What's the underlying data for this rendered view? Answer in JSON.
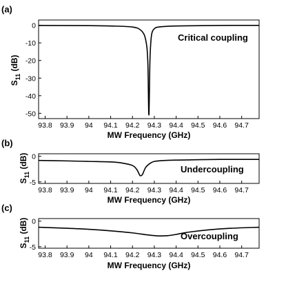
{
  "chart_data": [
    {
      "type": "line",
      "panel_label": "(a)",
      "annotation": "Critical coupling",
      "xlabel": "MW Frequency (GHz)",
      "ylabel_main": "S",
      "ylabel_sub": "11",
      "ylabel_unit": " (dB)",
      "xlim": [
        93.77,
        94.78
      ],
      "ylim": [
        -53,
        3
      ],
      "x_ticks": [
        "93.8",
        "93.9",
        "94",
        "94.1",
        "94.2",
        "94.3",
        "94.4",
        "94.5",
        "94.6",
        "94.7"
      ],
      "x_tick_values": [
        93.8,
        93.9,
        94.0,
        94.1,
        94.2,
        94.3,
        94.4,
        94.5,
        94.6,
        94.7
      ],
      "y_ticks": [
        "0",
        "-10",
        "-20",
        "-30",
        "-40",
        "-50"
      ],
      "y_tick_values": [
        0,
        -10,
        -20,
        -30,
        -40,
        -50
      ],
      "grid": false,
      "series": [
        {
          "x": [
            93.77,
            94.0,
            94.1,
            94.2,
            94.24,
            94.26,
            94.27,
            94.275,
            94.28,
            94.285,
            94.29,
            94.3,
            94.32,
            94.4,
            94.6,
            94.78
          ],
          "y": [
            -0.1,
            -0.2,
            -0.4,
            -1.0,
            -3.0,
            -8.0,
            -20.0,
            -51.0,
            -20.0,
            -8.0,
            -4.0,
            -2.0,
            -1.0,
            -0.4,
            -0.1,
            -0.05
          ]
        }
      ]
    },
    {
      "type": "line",
      "panel_label": "(b)",
      "annotation": "Undercoupling",
      "xlabel": "MW Frequency (GHz)",
      "ylabel_main": "S",
      "ylabel_sub": "11",
      "ylabel_unit": " (dB)",
      "xlim": [
        93.77,
        94.78
      ],
      "ylim": [
        -5.3,
        0.5
      ],
      "x_ticks": [
        "93.8",
        "93.9",
        "94",
        "94.1",
        "94.2",
        "94.3",
        "94.4",
        "94.5",
        "94.6",
        "94.7"
      ],
      "x_tick_values": [
        93.8,
        93.9,
        94.0,
        94.1,
        94.2,
        94.3,
        94.4,
        94.5,
        94.6,
        94.7
      ],
      "y_ticks": [
        "0",
        "-5"
      ],
      "y_tick_values": [
        0,
        -5
      ],
      "grid": false,
      "series": [
        {
          "x": [
            93.77,
            93.9,
            94.0,
            94.1,
            94.15,
            94.2,
            94.22,
            94.235,
            94.245,
            94.26,
            94.28,
            94.3,
            94.35,
            94.45,
            94.6,
            94.78
          ],
          "y": [
            -0.8,
            -0.9,
            -1.0,
            -1.1,
            -1.3,
            -1.8,
            -2.6,
            -3.8,
            -3.6,
            -2.2,
            -1.4,
            -1.0,
            -0.8,
            -0.7,
            -0.6,
            -0.6
          ]
        }
      ]
    },
    {
      "type": "line",
      "panel_label": "(c)",
      "annotation": "Overcoupling",
      "xlabel": "MW Frequency (GHz)",
      "ylabel_main": "S",
      "ylabel_sub": "11",
      "ylabel_unit": " (dB)",
      "xlim": [
        93.77,
        94.78
      ],
      "ylim": [
        -5.3,
        0.5
      ],
      "x_ticks": [
        "93.8",
        "93.9",
        "94",
        "94.1",
        "94.2",
        "94.3",
        "94.4",
        "94.5",
        "94.6",
        "94.7"
      ],
      "x_tick_values": [
        93.8,
        93.9,
        94.0,
        94.1,
        94.2,
        94.3,
        94.4,
        94.5,
        94.6,
        94.7
      ],
      "y_ticks": [
        "0",
        "-5"
      ],
      "y_tick_values": [
        0,
        -5
      ],
      "grid": false,
      "series": [
        {
          "x": [
            93.77,
            93.9,
            94.0,
            94.1,
            94.2,
            94.27,
            94.32,
            94.36,
            94.4,
            94.45,
            94.55,
            94.65,
            94.78
          ],
          "y": [
            -1.2,
            -1.4,
            -1.6,
            -1.9,
            -2.3,
            -2.7,
            -2.9,
            -2.85,
            -2.6,
            -2.2,
            -1.7,
            -1.4,
            -1.2
          ]
        }
      ]
    }
  ]
}
